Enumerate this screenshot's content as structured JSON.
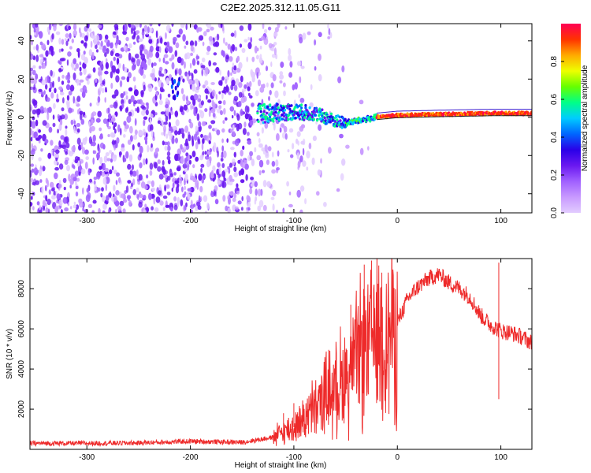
{
  "title": "C2E2.2025.312.11.05.G11",
  "colors": {
    "line": "#ee2a2a",
    "spec_scale": [
      "#e2ccff",
      "#c89aff",
      "#a060ff",
      "#6a18f0",
      "#2a00e8",
      "#0066ff",
      "#00ccff",
      "#00ff88",
      "#66ff00",
      "#eeff00",
      "#ffaa00",
      "#ff3300",
      "#ff0055"
    ]
  },
  "chart_data": [
    {
      "type": "heatmap",
      "name": "spectrogram",
      "xlabel": "Height of straight line (km)",
      "ylabel": "Frequency (Hz)",
      "xlim": [
        -355,
        130
      ],
      "ylim": [
        -50,
        49
      ],
      "xticks": [
        -300,
        -200,
        -100,
        0,
        100
      ],
      "yticks": [
        -40,
        -20,
        0,
        20,
        40
      ],
      "colorbar": {
        "label": "Normalized spectral amplitude",
        "range": [
          0.0,
          1.0
        ],
        "ticks": [
          "0.0",
          "0.2",
          "0.4",
          "0.6",
          "0.8"
        ],
        "tick_values": [
          0.0,
          0.2,
          0.4,
          0.6,
          0.8
        ]
      },
      "ridge": [
        {
          "x": -130,
          "f": 2
        },
        {
          "x": -100,
          "f": 3
        },
        {
          "x": -80,
          "f": 2
        },
        {
          "x": -60,
          "f": -2
        },
        {
          "x": -50,
          "f": -3
        },
        {
          "x": -40,
          "f": -2
        },
        {
          "x": -20,
          "f": 0
        },
        {
          "x": 0,
          "f": 1
        },
        {
          "x": 40,
          "f": 1.5
        },
        {
          "x": 90,
          "f": 2
        },
        {
          "x": 130,
          "f": 2
        }
      ]
    },
    {
      "type": "line",
      "name": "snr",
      "xlabel": "Height of straight line (km)",
      "ylabel": "SNR (10 * v/v)",
      "xlim": [
        -355,
        130
      ],
      "ylim": [
        0,
        9500
      ],
      "xticks": [
        -300,
        -200,
        -100,
        0,
        100
      ],
      "yticks": [
        2000,
        4000,
        6000,
        8000
      ],
      "series": [
        {
          "name": "SNR",
          "x": [
            -355,
            -300,
            -250,
            -200,
            -150,
            -120,
            -110,
            -100,
            -90,
            -80,
            -70,
            -60,
            -50,
            -40,
            -30,
            -20,
            -10,
            0,
            10,
            20,
            30,
            40,
            50,
            60,
            70,
            80,
            90,
            100,
            110,
            120,
            130
          ],
          "y": [
            300,
            300,
            320,
            400,
            350,
            600,
            900,
            1100,
            1600,
            2000,
            2700,
            3100,
            3700,
            4400,
            5200,
            6000,
            5700,
            6300,
            7500,
            8100,
            8500,
            8700,
            8300,
            8000,
            7600,
            6700,
            6200,
            5900,
            5800,
            5600,
            5300
          ]
        }
      ],
      "spikes": [
        {
          "x": -25,
          "y": 9400
        },
        {
          "x": -32,
          "y": 9200
        },
        {
          "x": -15,
          "y": 8800
        },
        {
          "x": -45,
          "y": 7200
        },
        {
          "x": 98,
          "y": 9300
        },
        {
          "x": 98,
          "y": 2500
        },
        {
          "x": -100,
          "y": 2300
        },
        {
          "x": -110,
          "y": 1800
        }
      ]
    }
  ]
}
